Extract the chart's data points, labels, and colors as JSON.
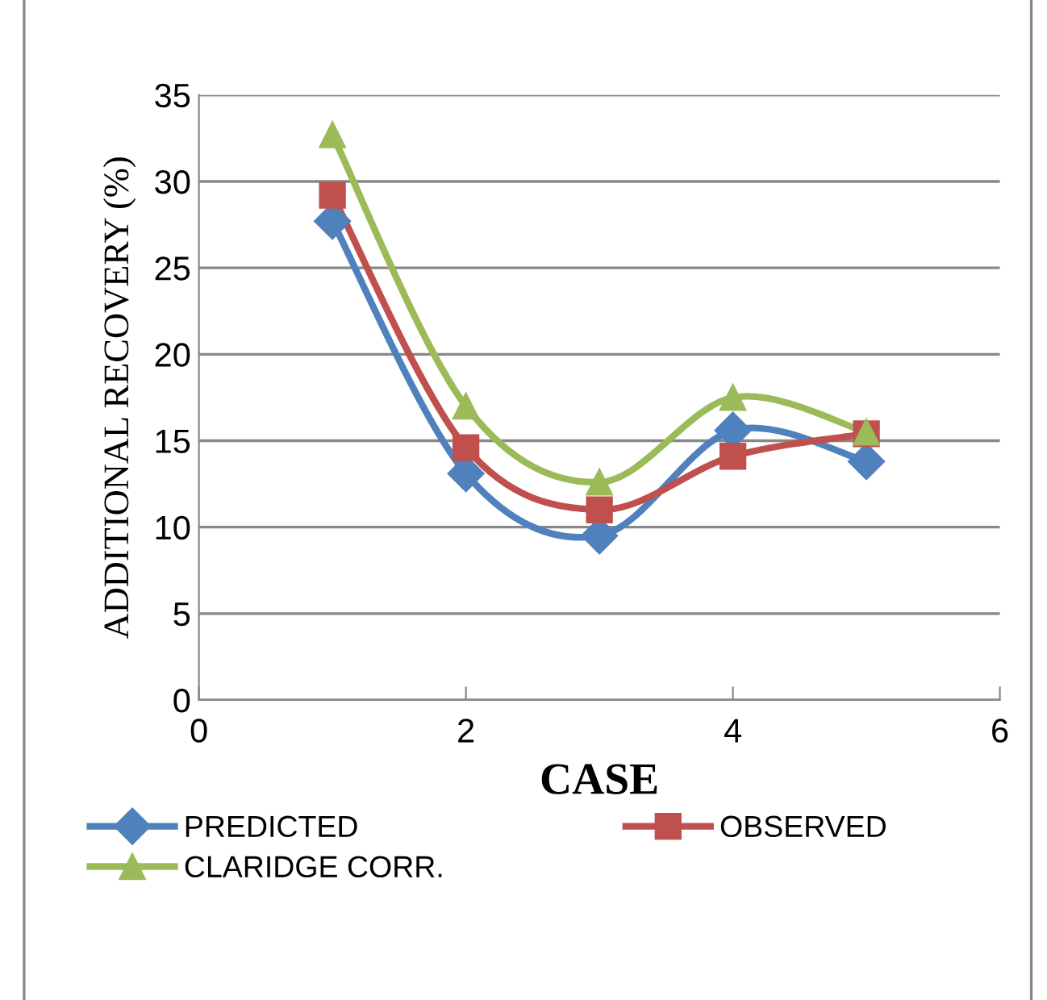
{
  "chart_data": {
    "type": "line",
    "xlabel": "CASE",
    "ylabel": "ADDITIONAL RECOVERY (%)",
    "x": [
      1,
      2,
      3,
      4,
      5
    ],
    "series": [
      {
        "name": "PREDICTED",
        "color": "#4f81bd",
        "marker": "diamond",
        "values": [
          27.7,
          13.1,
          9.5,
          15.6,
          13.8
        ]
      },
      {
        "name": "OBSERVED",
        "color": "#c0504d",
        "marker": "square",
        "values": [
          29.2,
          14.6,
          11.0,
          14.1,
          15.4
        ]
      },
      {
        "name": "CLARIDGE CORR.",
        "color": "#9bbb59",
        "marker": "triangle",
        "values": [
          32.7,
          17.0,
          12.6,
          17.5,
          15.5
        ]
      }
    ],
    "xlim": [
      0,
      6
    ],
    "xticks": [
      0,
      2,
      4,
      6
    ],
    "ylim": [
      0,
      35
    ],
    "yticks": [
      0,
      5,
      10,
      15,
      20,
      25,
      30,
      35
    ],
    "grid": "y",
    "legend": "bottom",
    "line_style": "solid"
  }
}
